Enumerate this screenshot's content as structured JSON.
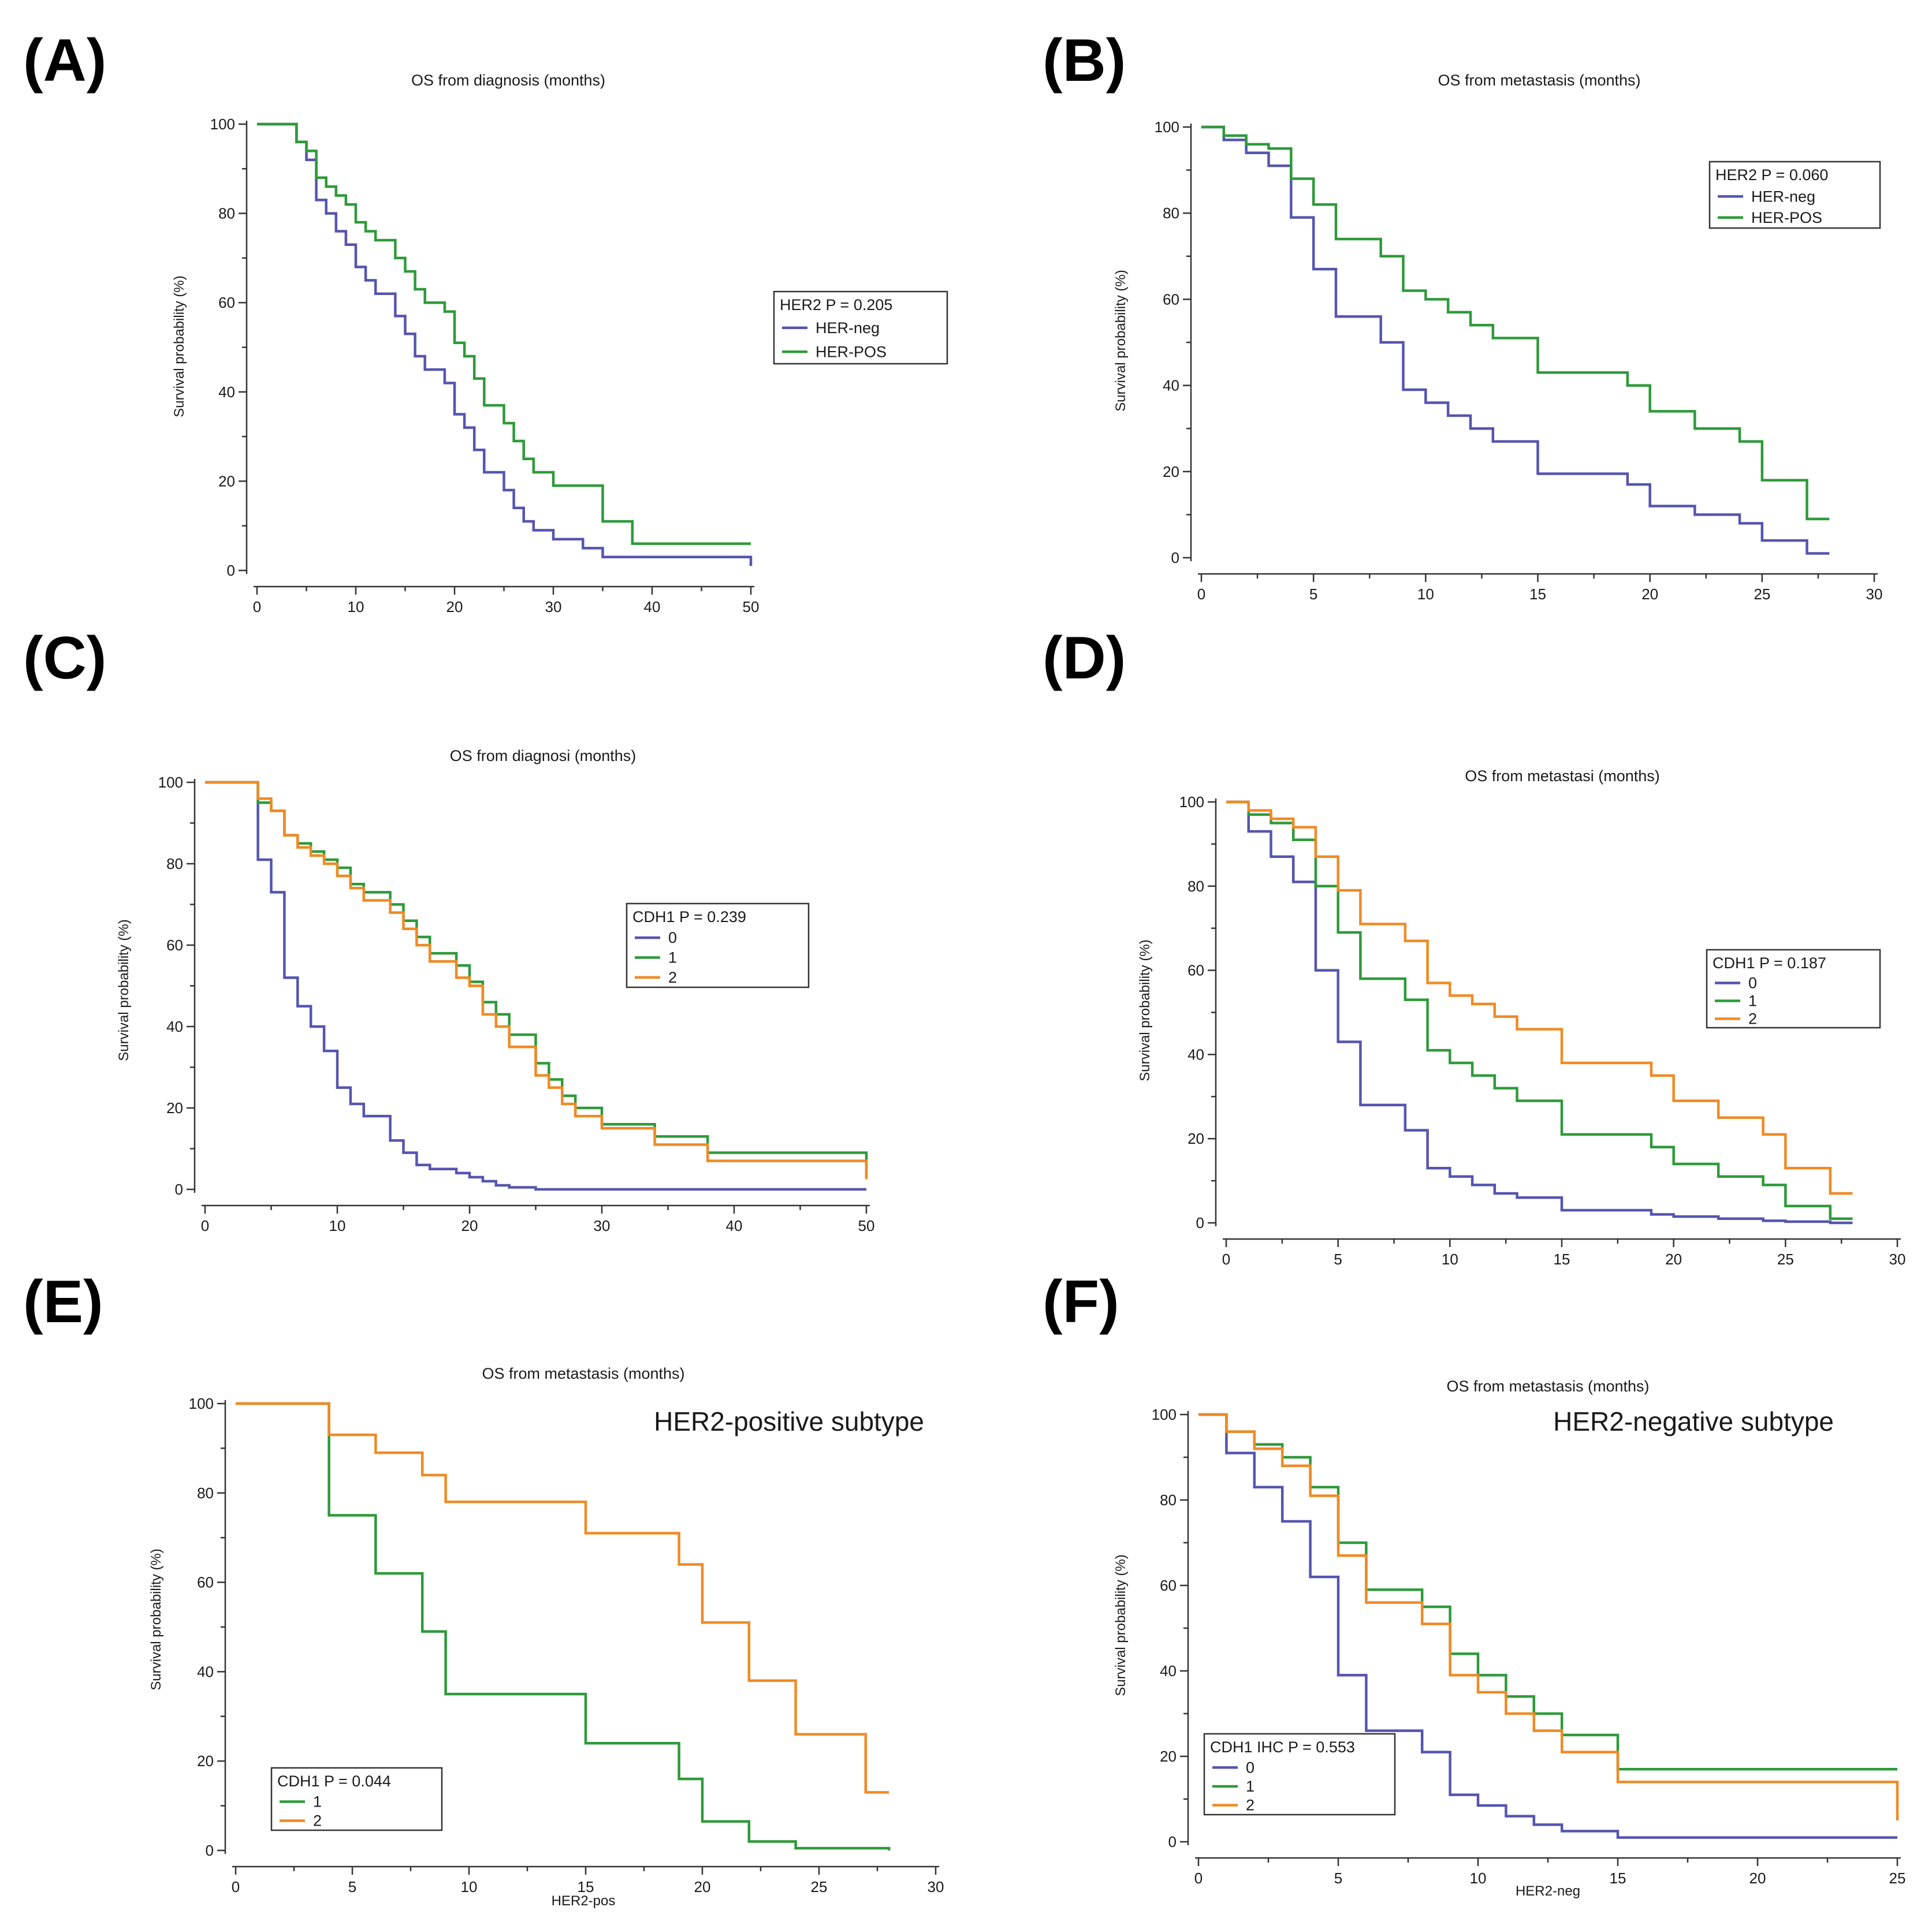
{
  "chart_data": [
    {
      "id": "A",
      "panel_label": "(A)",
      "type": "line",
      "title": "OS from diagnosis (months)",
      "ylabel": "Survival probability (%)",
      "xlabel": "",
      "xlim": [
        0,
        50
      ],
      "ylim": [
        0,
        100
      ],
      "xticks": [
        0,
        10,
        20,
        30,
        40,
        50
      ],
      "yticks": [
        0,
        20,
        40,
        60,
        80,
        100
      ],
      "legend": {
        "title": "HER2 P = 0.205",
        "placement": "right"
      },
      "series": [
        {
          "name": "HER-neg",
          "color": "#5555b0",
          "x": [
            0,
            4,
            5,
            6,
            7,
            8,
            9,
            10,
            11,
            12,
            14,
            15,
            16,
            17,
            19,
            20,
            21,
            22,
            23,
            25,
            26,
            27,
            28,
            30,
            33,
            35,
            50
          ],
          "y": [
            100,
            96,
            92,
            83,
            80,
            76,
            73,
            68,
            65,
            62,
            57,
            53,
            48,
            45,
            42,
            35,
            32,
            27,
            22,
            18,
            14,
            11,
            9,
            7,
            5,
            3,
            1
          ]
        },
        {
          "name": "HER-POS",
          "color": "#2e9a3a",
          "x": [
            0,
            4,
            5,
            6,
            7,
            8,
            9,
            10,
            11,
            12,
            14,
            15,
            16,
            17,
            19,
            20,
            21,
            22,
            23,
            25,
            26,
            27,
            28,
            30,
            35,
            38,
            50
          ],
          "y": [
            100,
            96,
            94,
            88,
            86,
            84,
            82,
            78,
            76,
            74,
            70,
            67,
            63,
            60,
            58,
            51,
            48,
            43,
            37,
            33,
            29,
            25,
            22,
            19,
            11,
            6,
            6
          ]
        }
      ]
    },
    {
      "id": "B",
      "panel_label": "(B)",
      "type": "line",
      "title": "OS from metastasis (months)",
      "ylabel": "Survival probability (%)",
      "xlabel": "",
      "xlim": [
        0,
        30
      ],
      "ylim": [
        0,
        100
      ],
      "xticks": [
        0,
        5,
        10,
        15,
        20,
        25,
        30
      ],
      "yticks": [
        0,
        20,
        40,
        60,
        80,
        100
      ],
      "legend": {
        "title": "HER2 P = 0.060",
        "placement": "top-right"
      },
      "series": [
        {
          "name": "HER-neg",
          "color": "#5555b0",
          "x": [
            0,
            1,
            2,
            3,
            4,
            5,
            6,
            8,
            9,
            10,
            11,
            12,
            13,
            15,
            19,
            20,
            22,
            24,
            25,
            27,
            28
          ],
          "y": [
            100,
            97,
            94,
            91,
            79,
            67,
            56,
            50,
            39,
            36,
            33,
            30,
            27,
            19.5,
            17,
            12,
            10,
            8,
            4,
            1,
            1
          ]
        },
        {
          "name": "HER-POS",
          "color": "#2e9a3a",
          "x": [
            0,
            1,
            2,
            3,
            4,
            5,
            6,
            8,
            9,
            10,
            11,
            12,
            13,
            15,
            19,
            20,
            22,
            24,
            25,
            27,
            28
          ],
          "y": [
            100,
            98,
            96,
            95,
            88,
            82,
            74,
            70,
            62,
            60,
            57,
            54,
            51,
            43,
            40,
            34,
            30,
            27,
            18,
            9,
            9
          ]
        }
      ]
    },
    {
      "id": "C",
      "panel_label": "(C)",
      "type": "line",
      "title": "OS from diagnosi (months)",
      "ylabel": "Survival probability (%)",
      "xlabel": "",
      "xlim": [
        0,
        50
      ],
      "ylim": [
        0,
        100
      ],
      "xticks": [
        0,
        10,
        20,
        30,
        40,
        50
      ],
      "yticks": [
        0,
        20,
        40,
        60,
        80,
        100
      ],
      "legend": {
        "title": "CDH1   P = 0.239",
        "placement": "right"
      },
      "series": [
        {
          "name": "0",
          "color": "#5555b0",
          "x": [
            0,
            4,
            5,
            6,
            7,
            8,
            9,
            10,
            11,
            12,
            14,
            15,
            16,
            17,
            19,
            20,
            21,
            22,
            23,
            25,
            50
          ],
          "y": [
            100,
            81,
            73,
            52,
            45,
            40,
            34,
            25,
            21,
            18,
            12,
            9,
            6,
            5,
            4,
            3,
            2,
            1,
            0.5,
            0,
            0
          ]
        },
        {
          "name": "1",
          "color": "#2e9a3a",
          "x": [
            0,
            4,
            5,
            6,
            7,
            8,
            9,
            10,
            11,
            12,
            14,
            15,
            16,
            17,
            19,
            20,
            21,
            22,
            23,
            25,
            26,
            27,
            28,
            30,
            34,
            38,
            50
          ],
          "y": [
            100,
            95,
            93,
            87,
            85,
            83,
            81,
            79,
            75,
            73,
            70,
            66,
            62,
            58,
            55,
            51,
            46,
            43,
            38,
            31,
            27,
            23,
            20,
            16,
            13,
            9,
            3
          ]
        },
        {
          "name": "2",
          "color": "#f08a24",
          "x": [
            0,
            4,
            5,
            6,
            7,
            8,
            9,
            10,
            11,
            12,
            14,
            15,
            16,
            17,
            19,
            20,
            21,
            22,
            23,
            25,
            26,
            27,
            28,
            30,
            34,
            38,
            50
          ],
          "y": [
            100,
            96,
            93,
            87,
            84,
            82,
            80,
            77,
            74,
            71,
            68,
            64,
            60,
            56,
            52,
            50,
            43,
            40,
            35,
            28,
            25,
            21,
            18,
            15,
            11,
            7,
            2.5
          ]
        }
      ]
    },
    {
      "id": "D",
      "panel_label": "(D)",
      "type": "line",
      "title": "OS from metastasi (months)",
      "ylabel": "Survival probability (%)",
      "xlabel": "",
      "xlim": [
        0,
        30
      ],
      "ylim": [
        0,
        100
      ],
      "xticks": [
        0,
        5,
        10,
        15,
        20,
        25,
        30
      ],
      "yticks": [
        0,
        20,
        40,
        60,
        80,
        100
      ],
      "legend": {
        "title": "CDH1 P = 0.187",
        "placement": "right"
      },
      "series": [
        {
          "name": "0",
          "color": "#5555b0",
          "x": [
            0,
            1,
            2,
            3,
            4,
            5,
            6,
            8,
            9,
            10,
            11,
            12,
            13,
            15,
            19,
            20,
            22,
            24,
            25,
            27,
            28
          ],
          "y": [
            100,
            93,
            87,
            81,
            60,
            43,
            28,
            22,
            13,
            11,
            9,
            7,
            6,
            3,
            2,
            1.5,
            1,
            0.5,
            0.3,
            0,
            0
          ]
        },
        {
          "name": "1",
          "color": "#2e9a3a",
          "x": [
            0,
            1,
            2,
            3,
            4,
            5,
            6,
            8,
            9,
            10,
            11,
            12,
            13,
            15,
            19,
            20,
            22,
            24,
            25,
            27,
            28
          ],
          "y": [
            100,
            97,
            95,
            91,
            80,
            69,
            58,
            53,
            41,
            38,
            35,
            32,
            29,
            21,
            18,
            14,
            11,
            9,
            4,
            1,
            1
          ]
        },
        {
          "name": "2",
          "color": "#f08a24",
          "x": [
            0,
            1,
            2,
            3,
            4,
            5,
            6,
            8,
            9,
            10,
            11,
            12,
            13,
            15,
            19,
            20,
            22,
            24,
            25,
            27,
            28
          ],
          "y": [
            100,
            98,
            96,
            94,
            87,
            79,
            71,
            67,
            57,
            54,
            52,
            49,
            46,
            38,
            35,
            29,
            25,
            21,
            13,
            7,
            7
          ]
        }
      ]
    },
    {
      "id": "E",
      "panel_label": "(E)",
      "type": "line",
      "title": "OS from metastasis (months)",
      "subtype_label": "HER2-positive subtype",
      "ylabel": "Survival probability (%)",
      "xlabel": "HER2-pos",
      "xlim": [
        0,
        30
      ],
      "ylim": [
        0,
        100
      ],
      "xticks": [
        0,
        5,
        10,
        15,
        20,
        25,
        30
      ],
      "yticks": [
        0,
        20,
        40,
        60,
        80,
        100
      ],
      "legend": {
        "title": "CDH1   P = 0.044",
        "placement": "bottom-left"
      },
      "series": [
        {
          "name": "1",
          "color": "#2e9a3a",
          "x": [
            0,
            4,
            6,
            8,
            9,
            15,
            19,
            20,
            22,
            24,
            28
          ],
          "y": [
            100,
            75,
            62,
            49,
            35,
            24,
            16,
            6.5,
            2,
            0.5,
            0
          ]
        },
        {
          "name": "2",
          "color": "#f08a24",
          "x": [
            0,
            4,
            6,
            8,
            9,
            15,
            19,
            20,
            22,
            24,
            27,
            28
          ],
          "y": [
            100,
            93,
            89,
            84,
            78,
            71,
            64,
            51,
            38,
            26,
            13,
            13
          ]
        }
      ]
    },
    {
      "id": "F",
      "panel_label": "(F)",
      "type": "line",
      "title": "OS from metastasis (months)",
      "subtype_label": "HER2-negative subtype",
      "ylabel": "Survival probability (%)",
      "xlabel": "HER2-neg",
      "xlim": [
        0,
        25
      ],
      "ylim": [
        0,
        100
      ],
      "xticks": [
        0,
        5,
        10,
        15,
        20,
        25
      ],
      "yticks": [
        0,
        20,
        40,
        60,
        80,
        100
      ],
      "legend": {
        "title": "CDH1 IHC P = 0.553",
        "placement": "bottom-left"
      },
      "series": [
        {
          "name": "0",
          "color": "#5555b0",
          "x": [
            0,
            1,
            2,
            3,
            4,
            5,
            6,
            8,
            9,
            10,
            11,
            12,
            13,
            15,
            25
          ],
          "y": [
            100,
            91,
            83,
            75,
            62,
            39,
            26,
            21,
            11,
            8.5,
            6,
            4,
            2.5,
            1,
            1
          ]
        },
        {
          "name": "1",
          "color": "#2e9a3a",
          "x": [
            0,
            1,
            2,
            3,
            4,
            5,
            6,
            8,
            9,
            10,
            11,
            12,
            13,
            15,
            25
          ],
          "y": [
            100,
            96,
            93,
            90,
            83,
            70,
            59,
            55,
            44,
            39,
            34,
            30,
            25,
            17,
            17
          ]
        },
        {
          "name": "2",
          "color": "#f08a24",
          "x": [
            0,
            1,
            2,
            3,
            4,
            5,
            6,
            8,
            9,
            10,
            11,
            12,
            13,
            15,
            25
          ],
          "y": [
            100,
            96,
            92,
            88,
            81,
            67,
            56,
            51,
            39,
            35,
            30,
            26,
            21,
            14,
            5
          ]
        }
      ]
    }
  ]
}
